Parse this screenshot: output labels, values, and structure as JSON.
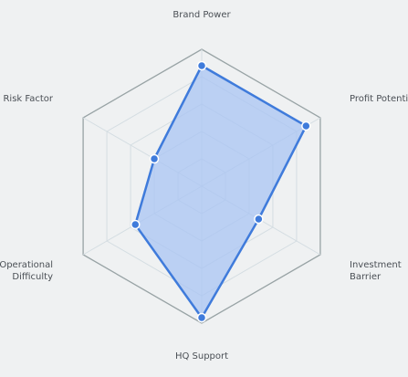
{
  "chart_data": {
    "type": "radar",
    "axes": [
      {
        "key": "brand_power",
        "lines": [
          "Brand Power"
        ]
      },
      {
        "key": "profit_potential",
        "lines": [
          "Profit Potential"
        ]
      },
      {
        "key": "investment_barrier",
        "lines": [
          "Investment",
          "Barrier"
        ]
      },
      {
        "key": "hq_support",
        "lines": [
          "HQ Support"
        ]
      },
      {
        "key": "operational_difficulty",
        "lines": [
          "Operational",
          "Difficulty"
        ]
      },
      {
        "key": "risk_factor",
        "lines": [
          "Risk Factor"
        ]
      }
    ],
    "range": [
      0,
      5
    ],
    "grid_levels": 5,
    "series": [
      {
        "values": [
          4.4,
          4.4,
          2.4,
          4.8,
          2.8,
          2.0
        ]
      }
    ],
    "colors": {
      "fill": "#a9c4f3",
      "line": "#3f7bdb",
      "point": "#3f7bdb",
      "grid_outer": "#98a3a5",
      "grid_inner": "#d4dde2",
      "spoke": "#d4dde2"
    }
  }
}
